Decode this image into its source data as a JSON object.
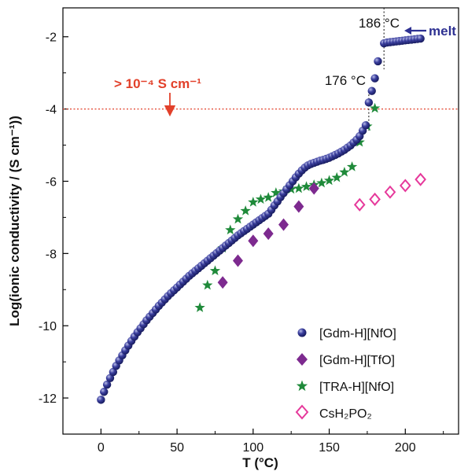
{
  "chart_data": {
    "type": "scatter",
    "xlabel": "T (°C)",
    "ylabel": "Log(ionic conductivity / (S cm⁻¹))",
    "xlim": [
      -25,
      235
    ],
    "ylim": [
      -13,
      -1.2
    ],
    "xticks": [
      0,
      50,
      100,
      150,
      200
    ],
    "yticks": [
      -12,
      -10,
      -8,
      -6,
      -4,
      -2
    ],
    "grid": false,
    "legend_position": "bottom-right",
    "reference_line": {
      "y": -4,
      "color": "#e2402a",
      "style": "dotted"
    },
    "vertical_markers": [
      {
        "x": 176,
        "label": "176 °C"
      },
      {
        "x": 186,
        "label": "186 °C"
      }
    ],
    "annotations": {
      "threshold": "> 10⁻⁴ S cm⁻¹",
      "melt": "melt"
    },
    "series": [
      {
        "name": "[Gdm-H][NfO]",
        "marker": "sphere",
        "color": "#2e3192",
        "points": [
          [
            0,
            -12.05
          ],
          [
            2,
            -11.83
          ],
          [
            4,
            -11.63
          ],
          [
            6,
            -11.45
          ],
          [
            8,
            -11.28
          ],
          [
            10,
            -11.11
          ],
          [
            12,
            -10.96
          ],
          [
            14,
            -10.82
          ],
          [
            16,
            -10.68
          ],
          [
            18,
            -10.55
          ],
          [
            20,
            -10.42
          ],
          [
            22,
            -10.3
          ],
          [
            24,
            -10.18
          ],
          [
            26,
            -10.07
          ],
          [
            28,
            -9.96
          ],
          [
            30,
            -9.85
          ],
          [
            32,
            -9.75
          ],
          [
            34,
            -9.65
          ],
          [
            36,
            -9.55
          ],
          [
            38,
            -9.45
          ],
          [
            40,
            -9.36
          ],
          [
            42,
            -9.27
          ],
          [
            44,
            -9.18
          ],
          [
            46,
            -9.1
          ],
          [
            48,
            -9.02
          ],
          [
            50,
            -8.94
          ],
          [
            52,
            -8.86
          ],
          [
            54,
            -8.78
          ],
          [
            56,
            -8.7
          ],
          [
            58,
            -8.62
          ],
          [
            60,
            -8.55
          ],
          [
            62,
            -8.48
          ],
          [
            64,
            -8.41
          ],
          [
            66,
            -8.34
          ],
          [
            68,
            -8.27
          ],
          [
            70,
            -8.2
          ],
          [
            72,
            -8.13
          ],
          [
            74,
            -8.06
          ],
          [
            76,
            -7.99
          ],
          [
            78,
            -7.92
          ],
          [
            80,
            -7.85
          ],
          [
            82,
            -7.78
          ],
          [
            84,
            -7.71
          ],
          [
            86,
            -7.64
          ],
          [
            88,
            -7.57
          ],
          [
            90,
            -7.5
          ],
          [
            92,
            -7.44
          ],
          [
            94,
            -7.38
          ],
          [
            96,
            -7.32
          ],
          [
            98,
            -7.26
          ],
          [
            100,
            -7.2
          ],
          [
            102,
            -7.14
          ],
          [
            104,
            -7.08
          ],
          [
            106,
            -7.02
          ],
          [
            108,
            -6.96
          ],
          [
            110,
            -6.9
          ],
          [
            112,
            -6.79
          ],
          [
            114,
            -6.67
          ],
          [
            116,
            -6.56
          ],
          [
            118,
            -6.44
          ],
          [
            120,
            -6.33
          ],
          [
            122,
            -6.22
          ],
          [
            124,
            -6.11
          ],
          [
            126,
            -6.0
          ],
          [
            128,
            -5.89
          ],
          [
            130,
            -5.79
          ],
          [
            132,
            -5.7
          ],
          [
            134,
            -5.62
          ],
          [
            136,
            -5.56
          ],
          [
            138,
            -5.52
          ],
          [
            140,
            -5.49
          ],
          [
            142,
            -5.46
          ],
          [
            144,
            -5.43
          ],
          [
            146,
            -5.41
          ],
          [
            148,
            -5.38
          ],
          [
            150,
            -5.35
          ],
          [
            152,
            -5.31
          ],
          [
            154,
            -5.27
          ],
          [
            156,
            -5.23
          ],
          [
            158,
            -5.18
          ],
          [
            160,
            -5.13
          ],
          [
            162,
            -5.07
          ],
          [
            164,
            -5.01
          ],
          [
            166,
            -4.93
          ],
          [
            168,
            -4.85
          ],
          [
            170,
            -4.75
          ],
          [
            172,
            -4.6
          ],
          [
            174,
            -4.45
          ],
          [
            176,
            -3.82
          ],
          [
            178,
            -3.5
          ],
          [
            180,
            -3.15
          ],
          [
            182,
            -2.68
          ],
          [
            186,
            -2.18
          ],
          [
            188,
            -2.16
          ],
          [
            190,
            -2.15
          ],
          [
            192,
            -2.14
          ],
          [
            194,
            -2.13
          ],
          [
            196,
            -2.12
          ],
          [
            198,
            -2.11
          ],
          [
            200,
            -2.1
          ],
          [
            202,
            -2.09
          ],
          [
            204,
            -2.08
          ],
          [
            206,
            -2.07
          ],
          [
            208,
            -2.06
          ],
          [
            210,
            -2.05
          ]
        ]
      },
      {
        "name": "[Gdm-H][TfO]",
        "marker": "diamond",
        "color": "#7d2a8f",
        "points": [
          [
            80,
            -8.8
          ],
          [
            90,
            -8.2
          ],
          [
            100,
            -7.65
          ],
          [
            110,
            -7.45
          ],
          [
            120,
            -7.2
          ],
          [
            130,
            -6.7
          ],
          [
            140,
            -6.2
          ]
        ]
      },
      {
        "name": "[TRA-H][NfO]",
        "marker": "star",
        "color": "#1f8a3a",
        "points": [
          [
            65,
            -9.5
          ],
          [
            70,
            -8.88
          ],
          [
            75,
            -8.48
          ],
          [
            80,
            -7.85
          ],
          [
            85,
            -7.35
          ],
          [
            90,
            -7.05
          ],
          [
            95,
            -6.82
          ],
          [
            100,
            -6.58
          ],
          [
            105,
            -6.5
          ],
          [
            110,
            -6.45
          ],
          [
            115,
            -6.32
          ],
          [
            120,
            -6.28
          ],
          [
            125,
            -6.22
          ],
          [
            130,
            -6.2
          ],
          [
            135,
            -6.15
          ],
          [
            140,
            -6.1
          ],
          [
            145,
            -6.05
          ],
          [
            150,
            -5.98
          ],
          [
            155,
            -5.9
          ],
          [
            160,
            -5.75
          ],
          [
            165,
            -5.6
          ],
          [
            170,
            -4.92
          ],
          [
            175,
            -4.48
          ],
          [
            180,
            -3.98
          ]
        ]
      },
      {
        "name": "CsH₂PO₂",
        "marker": "open-diamond",
        "color": "#e6399b",
        "points": [
          [
            170,
            -6.65
          ],
          [
            180,
            -6.5
          ],
          [
            190,
            -6.3
          ],
          [
            200,
            -6.12
          ],
          [
            210,
            -5.95
          ]
        ]
      }
    ]
  }
}
